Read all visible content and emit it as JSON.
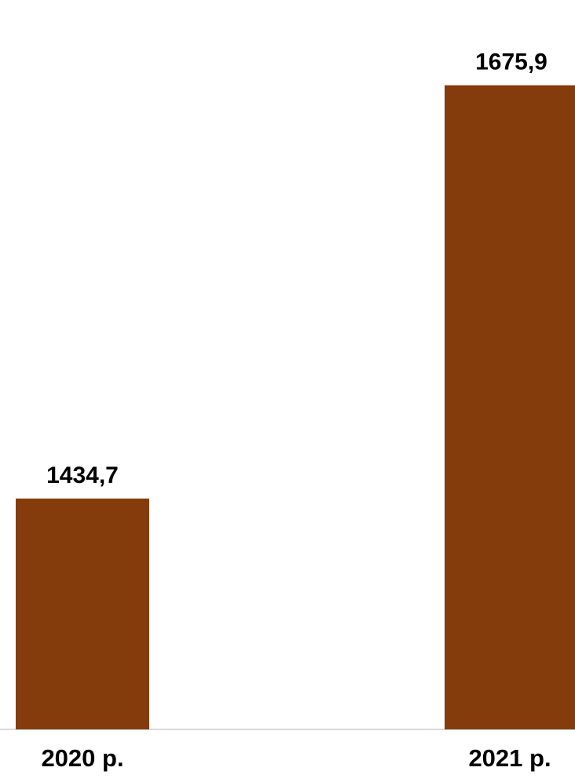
{
  "chart_data": {
    "type": "bar",
    "categories": [
      "2020 р.",
      "2021 р."
    ],
    "values": [
      1434.7,
      1675.9
    ],
    "value_labels": [
      "1434,7",
      "1675,9"
    ],
    "title": "",
    "xlabel": "",
    "ylabel": "",
    "ylim": [
      1300,
      1700
    ],
    "grid": false,
    "legend": "none",
    "colors": {
      "bar": "#843C0C",
      "axis": "#D9D9D9",
      "text": "#000000"
    }
  }
}
